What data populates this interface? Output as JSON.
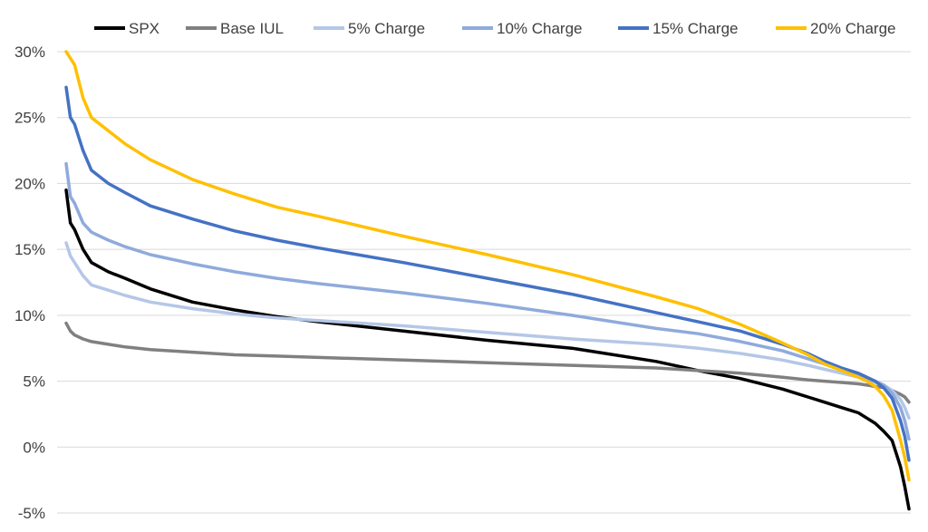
{
  "chart_data": {
    "type": "line",
    "title": "",
    "xlabel": "",
    "ylabel": "",
    "ylim": [
      -5,
      30
    ],
    "y_ticks": [
      30,
      25,
      20,
      15,
      10,
      5,
      0,
      -5
    ],
    "y_tick_labels": [
      "30%",
      "25%",
      "20%",
      "15%",
      "10%",
      "5%",
      "0%",
      "-5%"
    ],
    "grid": "horizontal",
    "legend_position": "top",
    "x_percentile": [
      0,
      0.5,
      1,
      2,
      3,
      5,
      7,
      10,
      15,
      20,
      25,
      30,
      40,
      50,
      60,
      70,
      75,
      80,
      85,
      88,
      90,
      92,
      94,
      95,
      96,
      97,
      98,
      99,
      99.5,
      100
    ],
    "series": [
      {
        "name": "SPX",
        "color": "#000000",
        "values": [
          19.5,
          17.0,
          16.5,
          15.0,
          14.0,
          13.3,
          12.8,
          12.0,
          11.0,
          10.4,
          9.9,
          9.5,
          8.8,
          8.1,
          7.5,
          6.5,
          5.8,
          5.2,
          4.4,
          3.8,
          3.4,
          3.0,
          2.6,
          2.2,
          1.8,
          1.2,
          0.5,
          -1.5,
          -3.0,
          -4.7
        ]
      },
      {
        "name": "Base IUL",
        "color": "#808080",
        "values": [
          9.4,
          8.8,
          8.5,
          8.2,
          8.0,
          7.8,
          7.6,
          7.4,
          7.2,
          7.0,
          6.9,
          6.8,
          6.6,
          6.4,
          6.2,
          6.0,
          5.8,
          5.6,
          5.3,
          5.1,
          5.0,
          4.9,
          4.8,
          4.7,
          4.6,
          4.5,
          4.3,
          4.0,
          3.8,
          3.4
        ]
      },
      {
        "name": "5% Charge",
        "color": "#b4c7e7",
        "values": [
          15.5,
          14.5,
          14.0,
          13.0,
          12.3,
          11.9,
          11.5,
          11.0,
          10.5,
          10.1,
          9.8,
          9.6,
          9.2,
          8.7,
          8.2,
          7.8,
          7.5,
          7.1,
          6.6,
          6.2,
          5.9,
          5.6,
          5.3,
          5.1,
          4.9,
          4.7,
          4.3,
          3.6,
          3.0,
          2.2
        ]
      },
      {
        "name": "10% Charge",
        "color": "#8faadc",
        "values": [
          21.5,
          19.0,
          18.5,
          17.0,
          16.3,
          15.7,
          15.2,
          14.6,
          13.9,
          13.3,
          12.8,
          12.4,
          11.7,
          10.9,
          10.0,
          9.0,
          8.6,
          8.0,
          7.3,
          6.7,
          6.3,
          5.9,
          5.5,
          5.2,
          5.0,
          4.7,
          4.1,
          3.0,
          2.0,
          0.6
        ]
      },
      {
        "name": "15% Charge",
        "color": "#4472c4",
        "values": [
          27.3,
          25.0,
          24.5,
          22.5,
          21.0,
          20.0,
          19.3,
          18.3,
          17.3,
          16.4,
          15.7,
          15.1,
          14.0,
          12.8,
          11.6,
          10.2,
          9.5,
          8.8,
          7.8,
          7.1,
          6.5,
          6.0,
          5.6,
          5.3,
          5.0,
          4.5,
          3.7,
          2.0,
          0.8,
          -1.0
        ]
      },
      {
        "name": "20% Charge",
        "color": "#ffc000",
        "values": [
          30.0,
          29.5,
          29.0,
          26.5,
          25.0,
          24.0,
          23.0,
          21.8,
          20.3,
          19.2,
          18.2,
          17.5,
          16.0,
          14.6,
          13.1,
          11.4,
          10.5,
          9.3,
          7.9,
          7.0,
          6.3,
          5.8,
          5.3,
          5.0,
          4.6,
          3.9,
          2.8,
          0.5,
          -0.8,
          -2.5
        ]
      }
    ]
  }
}
